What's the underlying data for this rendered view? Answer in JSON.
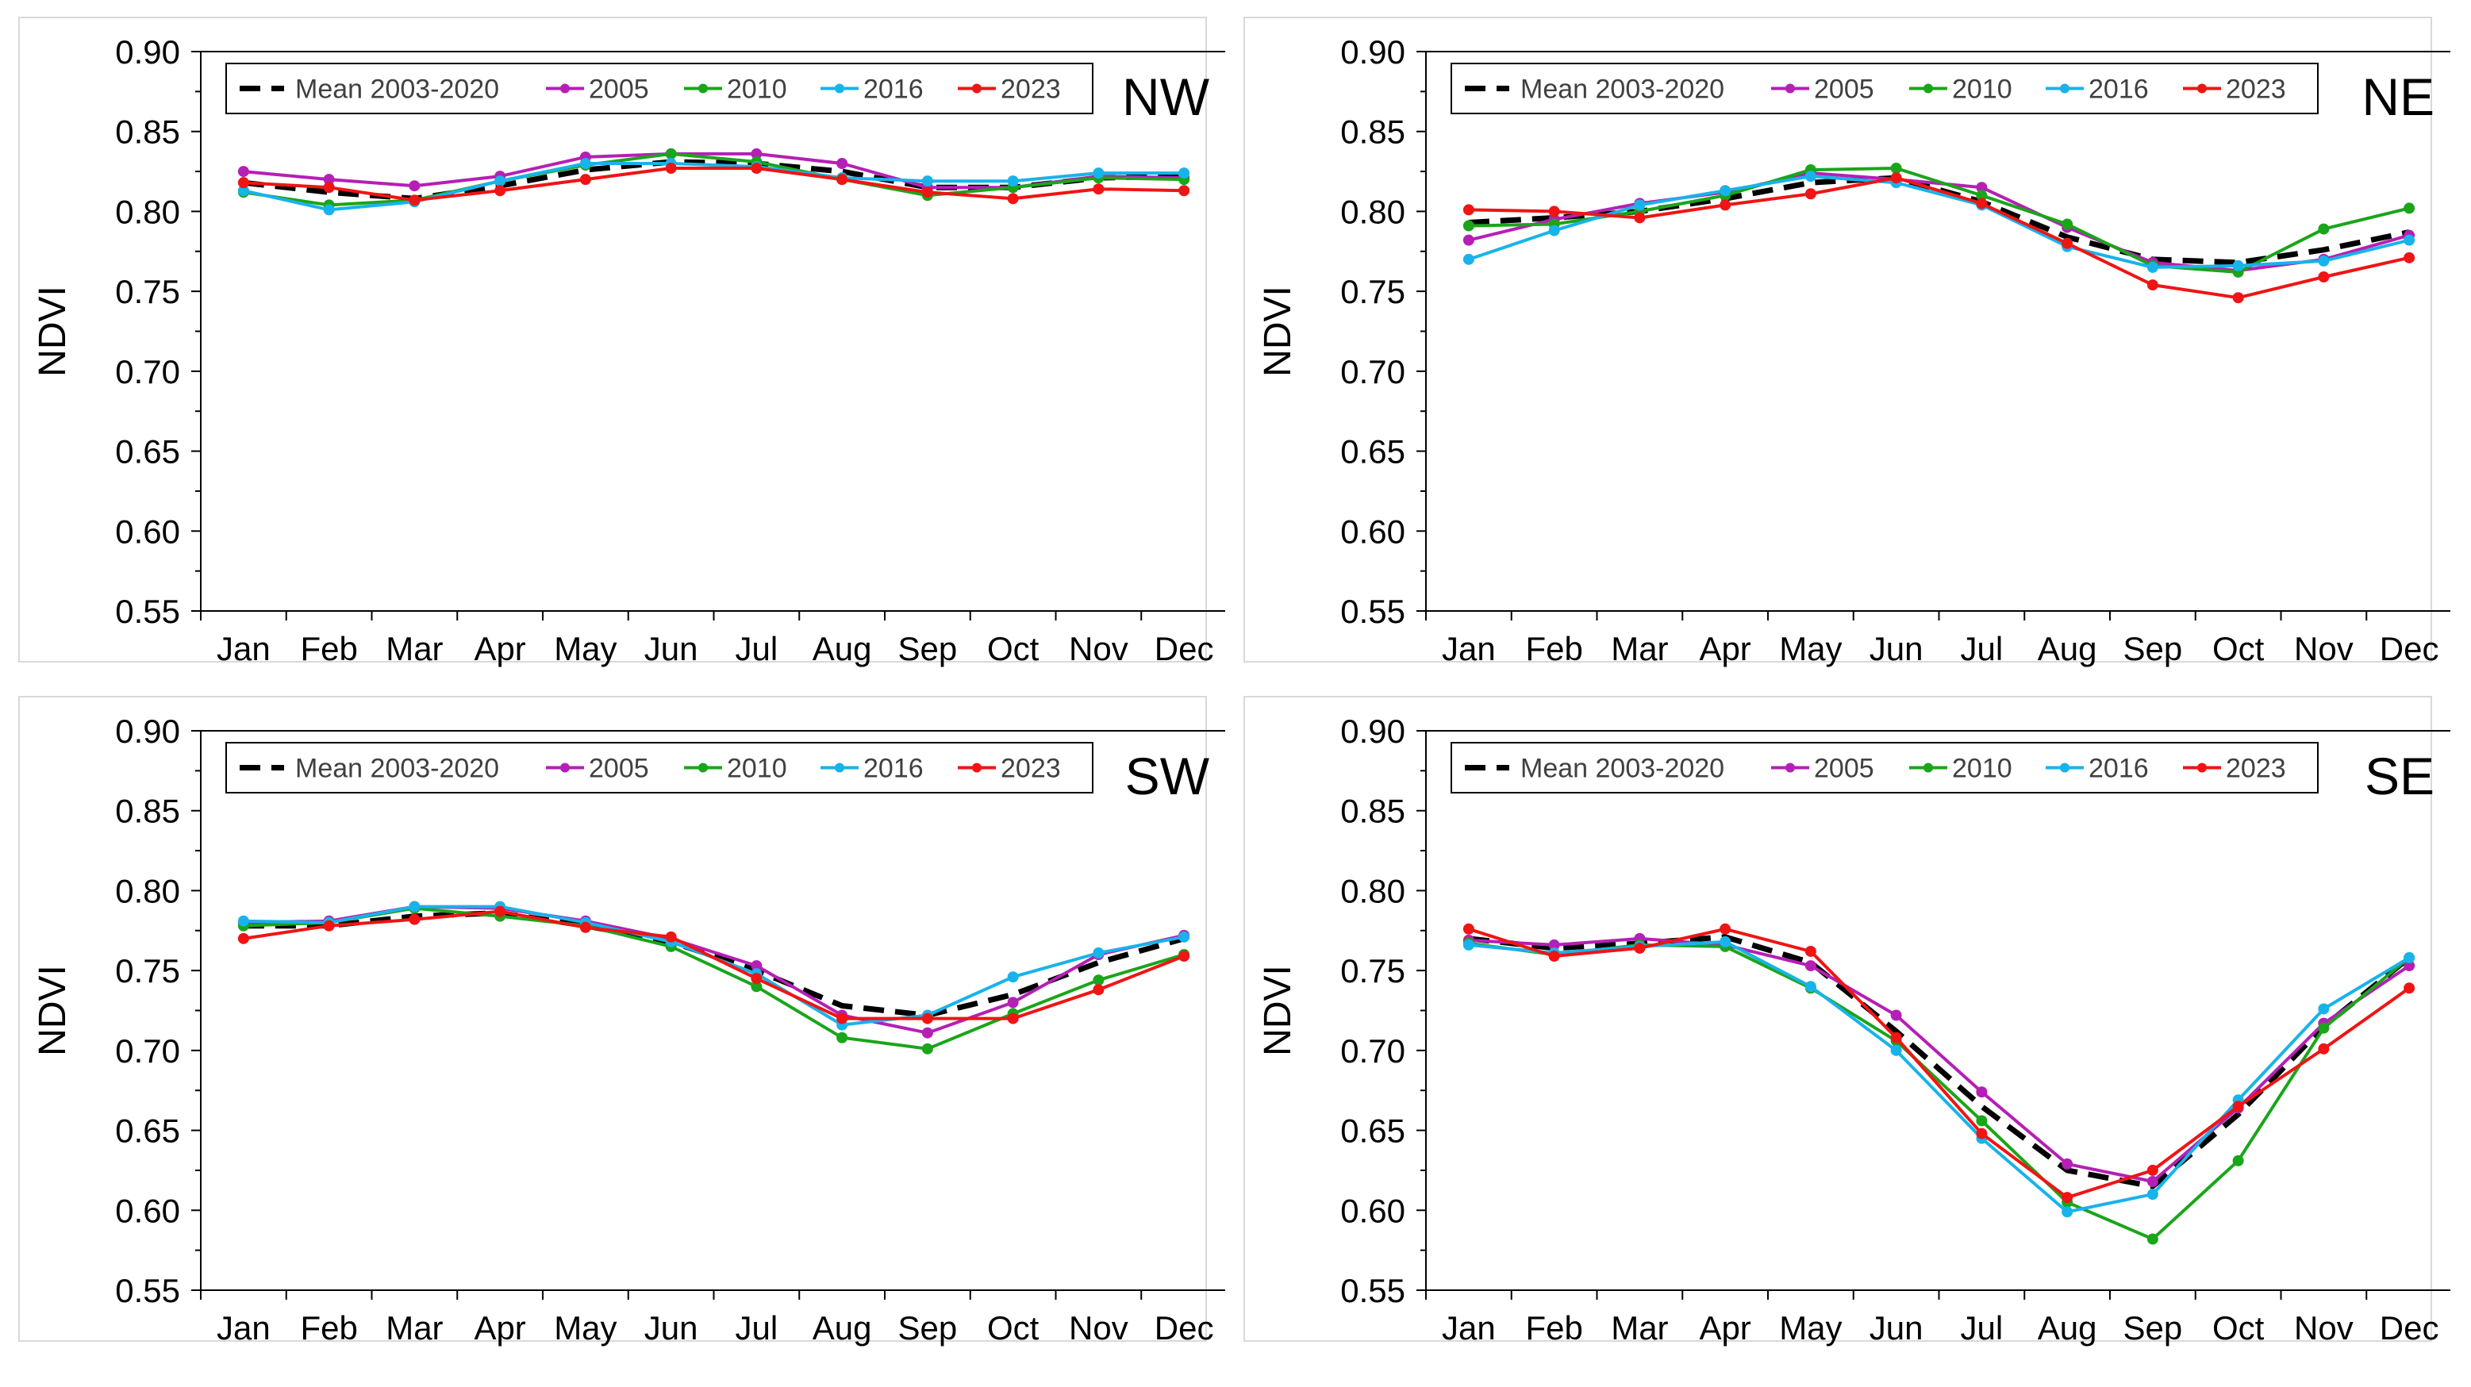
{
  "colors": {
    "mean": "#000000",
    "y2005": "#b51fb5",
    "y2010": "#1aa51a",
    "y2016": "#18b3ea",
    "y2023": "#f01414",
    "axis": "#000000"
  },
  "axes": {
    "ylabel": "NDVI",
    "ylim": [
      0.55,
      0.9
    ],
    "yticks": [
      "0.90",
      "0.85",
      "0.80",
      "0.75",
      "0.70",
      "0.65",
      "0.60",
      "0.55"
    ],
    "months": [
      "Jan",
      "Feb",
      "Mar",
      "Apr",
      "May",
      "Jun",
      "Jul",
      "Aug",
      "Sep",
      "Oct",
      "Nov",
      "Dec"
    ]
  },
  "legend": {
    "entries": [
      "Mean 2003-2020",
      "2005",
      "2010",
      "2016",
      "2023"
    ],
    "placement": "top"
  },
  "chart_data": [
    {
      "type": "line",
      "title": "NW",
      "ylabel": "NDVI",
      "ylim": [
        0.55,
        0.9
      ],
      "categories": [
        "Jan",
        "Feb",
        "Mar",
        "Apr",
        "May",
        "Jun",
        "Jul",
        "Aug",
        "Sep",
        "Oct",
        "Nov",
        "Dec"
      ],
      "series": [
        {
          "name": "Mean 2003-2020",
          "values": [
            0.818,
            0.812,
            0.808,
            0.816,
            0.826,
            0.831,
            0.83,
            0.825,
            0.815,
            0.815,
            0.821,
            0.822
          ]
        },
        {
          "name": "2005",
          "values": [
            0.825,
            0.82,
            0.816,
            0.822,
            0.834,
            0.836,
            0.836,
            0.83,
            0.815,
            0.815,
            0.822,
            0.821
          ]
        },
        {
          "name": "2010",
          "values": [
            0.812,
            0.804,
            0.807,
            0.819,
            0.829,
            0.836,
            0.831,
            0.82,
            0.81,
            0.815,
            0.821,
            0.82
          ]
        },
        {
          "name": "2016",
          "values": [
            0.813,
            0.801,
            0.806,
            0.819,
            0.83,
            0.83,
            0.828,
            0.821,
            0.819,
            0.819,
            0.824,
            0.824
          ]
        },
        {
          "name": "2023",
          "values": [
            0.818,
            0.815,
            0.807,
            0.813,
            0.82,
            0.827,
            0.827,
            0.82,
            0.812,
            0.808,
            0.814,
            0.813
          ]
        }
      ]
    },
    {
      "type": "line",
      "title": "NE",
      "ylabel": "NDVI",
      "ylim": [
        0.55,
        0.9
      ],
      "categories": [
        "Jan",
        "Feb",
        "Mar",
        "Apr",
        "May",
        "Jun",
        "Jul",
        "Aug",
        "Sep",
        "Oct",
        "Nov",
        "Dec"
      ],
      "series": [
        {
          "name": "Mean 2003-2020",
          "values": [
            0.793,
            0.796,
            0.8,
            0.808,
            0.818,
            0.821,
            0.806,
            0.784,
            0.77,
            0.768,
            0.776,
            0.787
          ]
        },
        {
          "name": "2005",
          "values": [
            0.782,
            0.795,
            0.805,
            0.812,
            0.824,
            0.82,
            0.815,
            0.79,
            0.768,
            0.763,
            0.77,
            0.785
          ]
        },
        {
          "name": "2010",
          "values": [
            0.791,
            0.792,
            0.8,
            0.81,
            0.826,
            0.827,
            0.81,
            0.792,
            0.766,
            0.762,
            0.789,
            0.802
          ]
        },
        {
          "name": "2016",
          "values": [
            0.77,
            0.788,
            0.804,
            0.813,
            0.822,
            0.818,
            0.804,
            0.778,
            0.765,
            0.766,
            0.769,
            0.782
          ]
        },
        {
          "name": "2023",
          "values": [
            0.801,
            0.8,
            0.796,
            0.804,
            0.811,
            0.821,
            0.805,
            0.78,
            0.754,
            0.746,
            0.759,
            0.771
          ]
        }
      ]
    },
    {
      "type": "line",
      "title": "SW",
      "ylabel": "NDVI",
      "ylim": [
        0.55,
        0.9
      ],
      "categories": [
        "Jan",
        "Feb",
        "Mar",
        "Apr",
        "May",
        "Jun",
        "Jul",
        "Aug",
        "Sep",
        "Oct",
        "Nov",
        "Dec"
      ],
      "series": [
        {
          "name": "Mean 2003-2020",
          "values": [
            0.778,
            0.778,
            0.784,
            0.786,
            0.778,
            0.768,
            0.75,
            0.728,
            0.722,
            0.735,
            0.755,
            0.77
          ]
        },
        {
          "name": "2005",
          "values": [
            0.78,
            0.781,
            0.79,
            0.789,
            0.781,
            0.77,
            0.753,
            0.722,
            0.711,
            0.73,
            0.76,
            0.772
          ]
        },
        {
          "name": "2010",
          "values": [
            0.778,
            0.78,
            0.789,
            0.784,
            0.778,
            0.765,
            0.74,
            0.708,
            0.701,
            0.723,
            0.744,
            0.76
          ]
        },
        {
          "name": "2016",
          "values": [
            0.781,
            0.78,
            0.79,
            0.79,
            0.78,
            0.768,
            0.748,
            0.716,
            0.722,
            0.746,
            0.761,
            0.771
          ]
        },
        {
          "name": "2023",
          "values": [
            0.77,
            0.778,
            0.782,
            0.787,
            0.777,
            0.771,
            0.745,
            0.72,
            0.72,
            0.72,
            0.738,
            0.759
          ]
        }
      ]
    },
    {
      "type": "line",
      "title": "SE",
      "ylabel": "NDVI",
      "ylim": [
        0.55,
        0.9
      ],
      "categories": [
        "Jan",
        "Feb",
        "Mar",
        "Apr",
        "May",
        "Jun",
        "Jul",
        "Aug",
        "Sep",
        "Oct",
        "Nov",
        "Dec"
      ],
      "series": [
        {
          "name": "Mean 2003-2020",
          "values": [
            0.77,
            0.764,
            0.767,
            0.771,
            0.755,
            0.712,
            0.665,
            0.625,
            0.615,
            0.66,
            0.715,
            0.758
          ]
        },
        {
          "name": "2005",
          "values": [
            0.769,
            0.766,
            0.77,
            0.766,
            0.753,
            0.722,
            0.674,
            0.629,
            0.618,
            0.664,
            0.717,
            0.753
          ]
        },
        {
          "name": "2010",
          "values": [
            0.767,
            0.76,
            0.766,
            0.765,
            0.739,
            0.706,
            0.656,
            0.605,
            0.582,
            0.631,
            0.714,
            0.758
          ]
        },
        {
          "name": "2016",
          "values": [
            0.766,
            0.761,
            0.765,
            0.768,
            0.74,
            0.7,
            0.645,
            0.599,
            0.61,
            0.669,
            0.726,
            0.758
          ]
        },
        {
          "name": "2023",
          "values": [
            0.776,
            0.759,
            0.764,
            0.776,
            0.762,
            0.708,
            0.648,
            0.608,
            0.625,
            0.665,
            0.701,
            0.739
          ]
        }
      ]
    }
  ]
}
